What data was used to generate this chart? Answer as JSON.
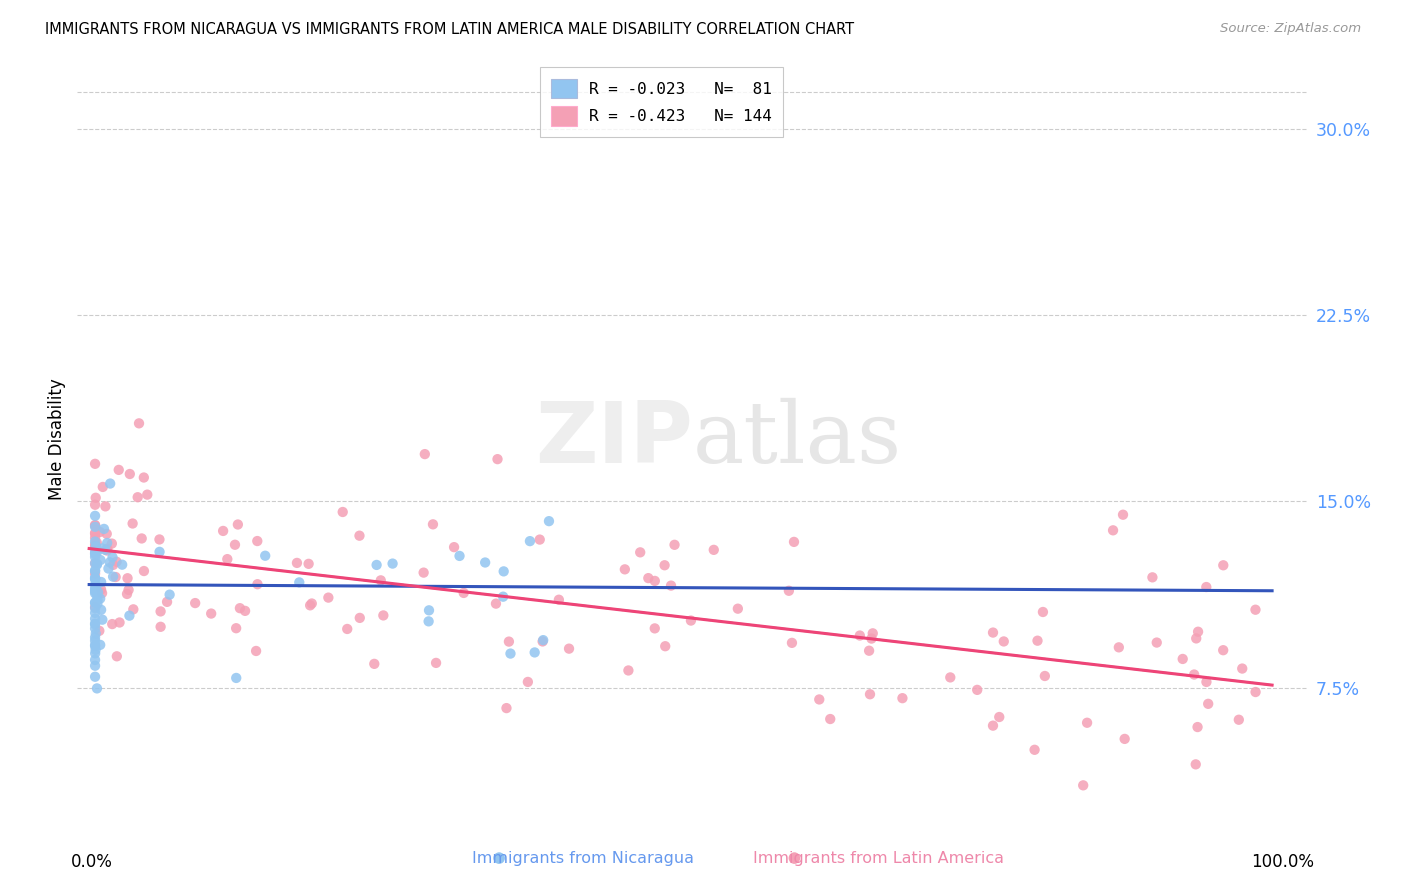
{
  "title": "IMMIGRANTS FROM NICARAGUA VS IMMIGRANTS FROM LATIN AMERICA MALE DISABILITY CORRELATION CHART",
  "source": "Source: ZipAtlas.com",
  "ylabel": "Male Disability",
  "ytick_vals": [
    0.075,
    0.15,
    0.225,
    0.3
  ],
  "ytick_labels": [
    "7.5%",
    "15.0%",
    "22.5%",
    "30.0%"
  ],
  "ymin": 0.025,
  "ymax": 0.325,
  "xmin": -0.01,
  "xmax": 1.03,
  "color_nicaragua": "#92C5F0",
  "color_latin": "#F4A0B5",
  "color_trendline_nicaragua": "#3355BB",
  "color_trendline_latin": "#EE4477",
  "color_trendline_gray": "#AAAAAA",
  "watermark_color": "#DDDDDD",
  "grid_color": "#CCCCCC",
  "ytick_color": "#5599FF",
  "xtick_color": "#000000",
  "legend_label1": "R = -0.023   N=  81",
  "legend_label2": "R = -0.423   N= 144",
  "bottom_label1": "Immigrants from Nicaragua",
  "bottom_label2": "Immigrants from Latin America",
  "bottom_label1_color": "#6699EE",
  "bottom_label2_color": "#EE88AA",
  "nic_trend_x0": 0.0,
  "nic_trend_x1": 1.0,
  "nic_trend_y0": 0.1165,
  "nic_trend_y1": 0.114,
  "lat_trend_x0": 0.0,
  "lat_trend_x1": 1.0,
  "lat_trend_y0": 0.131,
  "lat_trend_y1": 0.076
}
